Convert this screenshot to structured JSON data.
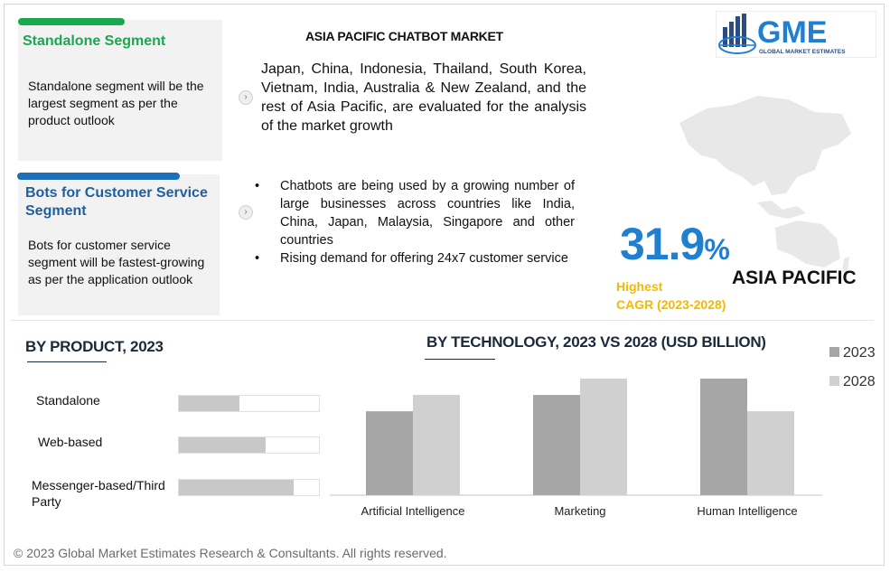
{
  "segments": [
    {
      "title": "Standalone Segment",
      "body": "Standalone segment will be the largest segment as per the product outlook",
      "color": "#1aa84f"
    },
    {
      "title": "Bots for Customer Service Segment",
      "body": "Bots for customer service segment will be fastest-growing as per the application outlook",
      "color": "#1f6fb8"
    }
  ],
  "market_title": "ASIA PACIFIC CHATBOT MARKET",
  "intro_text": "Japan, China, Indonesia, Thailand, South Korea, Vietnam, India, Australia & New Zealand, and the rest of Asia Pacific, are evaluated for the analysis of the market growth",
  "bullets": [
    "Chatbots are being used by a growing number of large businesses across countries like India, China, Japan, Malaysia, Singapore and other countries",
    "Rising demand for offering 24x7 customer service"
  ],
  "logo": {
    "text": "GME",
    "subtext": "GLOBAL MARKET ESTIMATES",
    "color": "#1f7fd0"
  },
  "cagr": {
    "value": "31.9",
    "unit": "%",
    "label_line1": "Highest",
    "label_line2": "CAGR (2023-2028)",
    "region": "ASIA PACIFIC"
  },
  "colors": {
    "accent_blue": "#1f7fd0",
    "accent_yellow": "#f5b800",
    "bar_2023": "#a6a6a6",
    "bar_2028": "#d0d0d0",
    "map": "#e8e8e8"
  },
  "chart_data": [
    {
      "type": "bar",
      "orientation": "horizontal",
      "title": "BY PRODUCT, 2023",
      "categories": [
        "Standalone",
        "Web-based",
        "Messenger-based/Third Party"
      ],
      "values": [
        0.43,
        0.62,
        0.82
      ],
      "value_scale": "relative share of track",
      "xlim": [
        0,
        1
      ]
    },
    {
      "type": "bar",
      "title": "BY TECHNOLOGY, 2023 VS 2028 (USD BILLION)",
      "categories": [
        "Artificial Intelligence",
        "Marketing",
        "Human Intelligence"
      ],
      "series": [
        {
          "name": "2023",
          "values": [
            0.72,
            0.86,
            1.0
          ]
        },
        {
          "name": "2028",
          "values": [
            0.86,
            1.0,
            0.72
          ]
        }
      ],
      "value_scale": "relative",
      "ylim": [
        0,
        1
      ],
      "legend": "right",
      "grid": false
    }
  ],
  "footer": "© 2023 Global Market Estimates Research & Consultants. All rights reserved."
}
